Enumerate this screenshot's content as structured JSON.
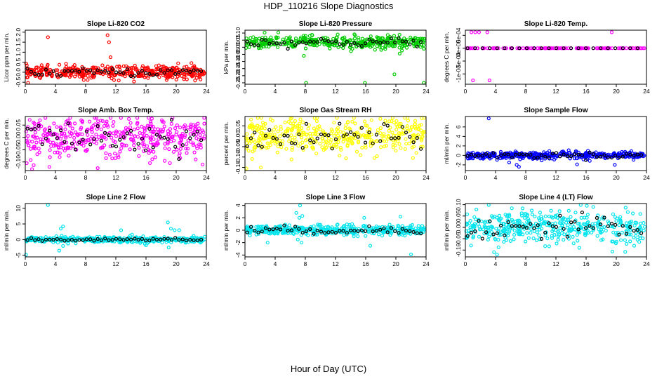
{
  "figure": {
    "title": "HDP_110216  Slope Diagnostics",
    "xlabel": "Hour of Day (UTC)"
  },
  "chart_data": [
    {
      "type": "scatter",
      "title": "Slope Li-820 CO2",
      "ylabel": "Licor ppm per min.",
      "color": "#ff0000",
      "xlim": [
        0,
        24
      ],
      "xticks": [
        0,
        4,
        8,
        12,
        16,
        20,
        24
      ],
      "ylim": [
        -0.6,
        2.1
      ],
      "yticks": [
        -0.5,
        0.0,
        0.5,
        1.0,
        1.5,
        2.0
      ],
      "ytick_labels": [
        "-0.5",
        "0.0",
        "0.5",
        "1.0",
        "1.5",
        "2.0"
      ],
      "center": 0.0,
      "spread": 0.16,
      "black_spread": 0.1,
      "outliers": [
        [
          3.0,
          1.75
        ],
        [
          10.9,
          1.85
        ],
        [
          11.1,
          1.5
        ],
        [
          11.3,
          0.75
        ]
      ]
    },
    {
      "type": "scatter",
      "title": "Slope Li-820 Pressure",
      "ylabel": "kPa per min.",
      "color": "#00cc00",
      "xlim": [
        0,
        24
      ],
      "xticks": [
        0,
        4,
        8,
        12,
        16,
        20,
        24
      ],
      "ylim": [
        -0.26,
        0.12
      ],
      "yticks": [
        -0.25,
        -0.2,
        -0.15,
        -0.1,
        -0.05,
        0.0,
        0.05,
        0.1
      ],
      "ytick_labels": [
        "-0.25",
        "-0.20",
        "-0.15",
        "-0.10",
        "-0.05",
        "0.00",
        "0.05",
        "0.10"
      ],
      "center": 0.035,
      "spread": 0.022,
      "black_spread": 0.016,
      "outliers": [
        [
          7.8,
          -0.06
        ],
        [
          8.1,
          -0.25
        ],
        [
          15.9,
          -0.25
        ],
        [
          20.5,
          -0.045
        ],
        [
          19.8,
          -0.19
        ],
        [
          23.7,
          -0.25
        ],
        [
          22.6,
          0.065
        ]
      ]
    },
    {
      "type": "scatter",
      "title": "Slope Li-820 Temp.",
      "ylabel": "degrees C per min.",
      "color": "#ff00ff",
      "xlim": [
        0,
        24
      ],
      "xticks": [
        0,
        4,
        8,
        12,
        16,
        20,
        24
      ],
      "ylim": [
        -0.0014,
        0.0007
      ],
      "yticks": [
        -0.001,
        -0.0005,
        0.0,
        0.0005
      ],
      "ytick_labels": [
        "-1e-03",
        "-5e-04",
        "0e+00",
        "5e-04"
      ],
      "center": 0.0,
      "spread": 0.0,
      "black_spread": 0.0,
      "flat": true,
      "outliers": [
        [
          0.8,
          0.00062
        ],
        [
          1.3,
          0.00062
        ],
        [
          1.8,
          0.00062
        ],
        [
          2.9,
          0.00062
        ],
        [
          19.4,
          0.00062
        ],
        [
          1.0,
          -0.00125
        ],
        [
          3.2,
          -0.00125
        ]
      ]
    },
    {
      "type": "scatter",
      "title": "Slope Amb. Box Temp.",
      "ylabel": "degrees C per min.",
      "color": "#ff00ff",
      "xlim": [
        0,
        24
      ],
      "xticks": [
        0,
        4,
        8,
        12,
        16,
        20,
        24
      ],
      "ylim": [
        -0.135,
        0.085
      ],
      "yticks": [
        -0.1,
        -0.05,
        0.0,
        0.05
      ],
      "ytick_labels": [
        "-0.10",
        "-0.05",
        "0.00",
        "0.05"
      ],
      "center": 0.0,
      "spread": 0.04,
      "black_spread": 0.03,
      "outliers": [
        [
          0.2,
          -0.105
        ],
        [
          3.2,
          -0.12
        ],
        [
          9.6,
          -0.125
        ],
        [
          23.5,
          -0.11
        ]
      ]
    },
    {
      "type": "scatter",
      "title": "Slope Gas Stream RH",
      "ylabel": "percent per min.",
      "color": "#ffff00",
      "xlim": [
        0,
        24
      ],
      "xticks": [
        0,
        4,
        8,
        12,
        16,
        20,
        24
      ],
      "ylim": [
        -0.165,
        0.095
      ],
      "yticks": [
        -0.15,
        -0.1,
        -0.05,
        0.0,
        0.05
      ],
      "ytick_labels": [
        "-0.15",
        "-0.10",
        "-0.05",
        "0.00",
        "0.05"
      ],
      "center": 0.0,
      "spread": 0.045,
      "black_spread": 0.04,
      "outliers": [
        [
          1.7,
          0.09
        ],
        [
          0.2,
          -0.155
        ],
        [
          2.1,
          -0.15
        ]
      ]
    },
    {
      "type": "scatter",
      "title": "Slope Sample Flow",
      "ylabel": "ml/min per min.",
      "color": "#0000ff",
      "xlim": [
        0,
        24
      ],
      "xticks": [
        0,
        4,
        8,
        12,
        16,
        20,
        24
      ],
      "ylim": [
        -3.2,
        8.2
      ],
      "yticks": [
        -2,
        0,
        2,
        4,
        6
      ],
      "ytick_labels": [
        "-2",
        "0",
        "2",
        "4",
        "6"
      ],
      "center": 0.0,
      "spread": 0.35,
      "black_spread": 0.3,
      "outliers": [
        [
          3.1,
          7.8
        ],
        [
          7.1,
          -2.4
        ],
        [
          6.8,
          -2.0
        ],
        [
          14.8,
          -1.9
        ],
        [
          19.8,
          -2.0
        ],
        [
          5.8,
          -1.5
        ]
      ]
    },
    {
      "type": "scatter",
      "title": "Slope Line 2 Flow",
      "ylabel": "ml/min per min.",
      "color": "#00e5ee",
      "xlim": [
        0,
        24
      ],
      "xticks": [
        0,
        4,
        8,
        12,
        16,
        20,
        24
      ],
      "ylim": [
        -5.5,
        11.5
      ],
      "yticks": [
        -5,
        0,
        5,
        10
      ],
      "ytick_labels": [
        "-5",
        "0",
        "5",
        "10"
      ],
      "center": 0.0,
      "spread": 0.45,
      "black_spread": 0.2,
      "outliers": [
        [
          3.0,
          11.0
        ],
        [
          4.7,
          3.5
        ],
        [
          5.0,
          4.2
        ],
        [
          0.1,
          -4.8
        ],
        [
          4.5,
          -3.5
        ],
        [
          5.0,
          -2.0
        ],
        [
          18.9,
          5.5
        ],
        [
          19.3,
          3.5
        ],
        [
          19.8,
          3.0
        ],
        [
          20.4,
          3.0
        ],
        [
          19.0,
          -2.5
        ],
        [
          12.7,
          3.0
        ],
        [
          16.0,
          -1.8
        ]
      ]
    },
    {
      "type": "scatter",
      "title": "Slope Line 3 Flow",
      "ylabel": "ml/min per min.",
      "color": "#00e5ee",
      "xlim": [
        0,
        24
      ],
      "xticks": [
        0,
        4,
        8,
        12,
        16,
        20,
        24
      ],
      "ylim": [
        -4.3,
        4.3
      ],
      "yticks": [
        -4,
        -2,
        0,
        2,
        4
      ],
      "ytick_labels": [
        "-4",
        "-2",
        "0",
        "2",
        "4"
      ],
      "center": 0.0,
      "spread": 0.4,
      "black_spread": 0.3,
      "outliers": [
        [
          7.3,
          4.0
        ],
        [
          6.8,
          2.8
        ],
        [
          7.6,
          2.3
        ],
        [
          7.2,
          2.0
        ],
        [
          7.0,
          -1.5
        ],
        [
          7.5,
          -2.0
        ],
        [
          3.0,
          -2.0
        ],
        [
          16.6,
          -2.5
        ],
        [
          22.0,
          -3.9
        ],
        [
          15.8,
          2.0
        ],
        [
          20.6,
          2.2
        ]
      ]
    },
    {
      "type": "scatter",
      "title": "Slope Line 4 (LT) Flow",
      "ylabel": "ml/min per min.",
      "color": "#00e5ee",
      "xlim": [
        0,
        24
      ],
      "xticks": [
        0,
        4,
        8,
        12,
        16,
        20,
        24
      ],
      "ylim": [
        -0.13,
        0.105
      ],
      "yticks": [
        -0.1,
        -0.05,
        0.0,
        0.05,
        0.1
      ],
      "ytick_labels": [
        "-0.10",
        "-0.05",
        "0.00",
        "0.05",
        "0.10"
      ],
      "center": 0.0,
      "spread": 0.035,
      "black_spread": 0.025,
      "outliers": [
        [
          4.2,
          -0.12
        ],
        [
          3.1,
          0.1
        ],
        [
          16.1,
          0.095
        ],
        [
          6.0,
          -0.06
        ]
      ]
    }
  ]
}
